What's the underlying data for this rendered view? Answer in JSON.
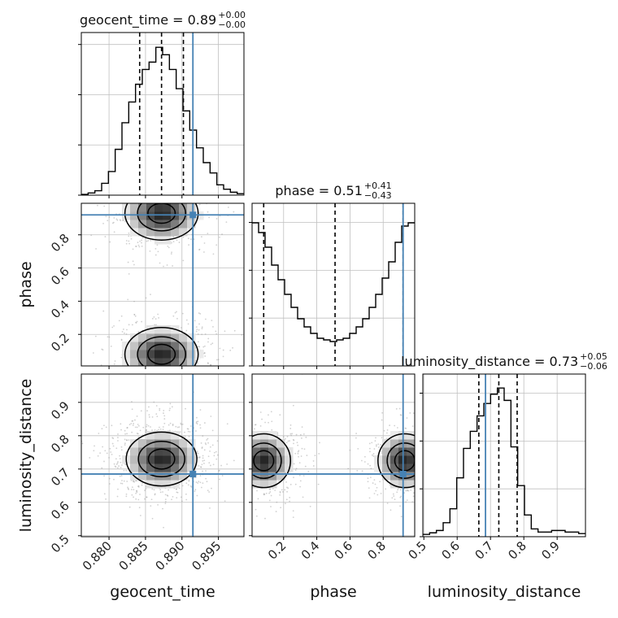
{
  "chart_data": {
    "type": "corner",
    "parameters": [
      "geocent_time",
      "phase",
      "luminosity_distance"
    ],
    "truths": {
      "geocent_time": 0.8915,
      "phase": 0.92,
      "luminosity_distance": 0.685
    },
    "colors": {
      "truth": "#4682b4",
      "hist": "#000000",
      "grid": "#c0c0c0",
      "scatter": "#9a9a9a"
    },
    "grid": true,
    "titles": {
      "geocent_time": {
        "label": "geocent_time = 0.89",
        "plus": "+0.00",
        "minus": "−0.00"
      },
      "phase": {
        "label": "phase = 0.51",
        "plus": "+0.41",
        "minus": "−0.43"
      },
      "luminosity_distance": {
        "label": "luminosity_distance = 0.73",
        "plus": "+0.05",
        "minus": "−0.06"
      }
    },
    "ranges": {
      "geocent_time": [
        0.8762,
        0.8985
      ],
      "phase": [
        0.01,
        0.99
      ],
      "luminosity_distance": [
        0.497,
        0.985
      ]
    },
    "ticks": {
      "geocent_time": [
        0.88,
        0.885,
        0.89,
        0.895
      ],
      "phase": [
        0.2,
        0.4,
        0.6,
        0.8
      ],
      "luminosity_distance": [
        0.5,
        0.6,
        0.7,
        0.8,
        0.9
      ]
    },
    "tick_labels": {
      "geocent_time": [
        "0.880",
        "0.885",
        "0.890",
        "0.895"
      ],
      "phase": [
        "0.2",
        "0.4",
        "0.6",
        "0.8"
      ],
      "luminosity_distance": [
        "0.5",
        "0.6",
        "0.7",
        "0.8",
        "0.9"
      ]
    },
    "axis_labels": {
      "geocent_time": "geocent_time",
      "phase": "phase",
      "luminosity_distance": "luminosity_distance"
    },
    "quantiles": {
      "geocent_time": [
        0.8842,
        0.8872,
        0.8902
      ],
      "phase": [
        0.08,
        0.51,
        0.92
      ],
      "luminosity_distance": [
        0.665,
        0.725,
        0.78
      ]
    },
    "histograms": {
      "geocent_time": {
        "edges_start": 0.8762,
        "edges_end": 0.8985,
        "counts": [
          0.005,
          0.015,
          0.03,
          0.08,
          0.16,
          0.31,
          0.49,
          0.63,
          0.75,
          0.85,
          0.9,
          1.0,
          0.95,
          0.85,
          0.72,
          0.57,
          0.44,
          0.32,
          0.22,
          0.15,
          0.07,
          0.04,
          0.02,
          0.01
        ]
      },
      "phase": {
        "edges_start": 0.01,
        "edges_end": 0.99,
        "counts": [
          0.88,
          0.82,
          0.73,
          0.62,
          0.53,
          0.44,
          0.36,
          0.29,
          0.24,
          0.2,
          0.17,
          0.16,
          0.15,
          0.16,
          0.17,
          0.2,
          0.24,
          0.29,
          0.36,
          0.44,
          0.54,
          0.64,
          0.76,
          0.86,
          0.88
        ]
      },
      "luminosity_distance": {
        "edges_start": 0.497,
        "edges_end": 0.985,
        "counts": [
          0.015,
          0.025,
          0.04,
          0.09,
          0.18,
          0.38,
          0.57,
          0.68,
          0.78,
          0.86,
          0.92,
          0.96,
          0.88,
          0.58,
          0.33,
          0.14,
          0.05,
          0.03,
          0.03,
          0.04,
          0.04,
          0.03,
          0.03,
          0.02
        ]
      }
    },
    "ylim_hist": {
      "geocent_time": [
        0,
        1.1
      ],
      "phase": [
        0,
        1.0
      ],
      "luminosity_distance": [
        0,
        1.05
      ]
    },
    "density_pairs": [
      {
        "x": "geocent_time",
        "y": "phase",
        "blobs": [
          {
            "cx": 0.8872,
            "cy": 0.93,
            "sx": 0.0028,
            "sy": 0.09
          },
          {
            "cx": 0.8872,
            "cy": 0.08,
            "sx": 0.0028,
            "sy": 0.09
          }
        ]
      },
      {
        "x": "geocent_time",
        "y": "luminosity_distance",
        "blobs": [
          {
            "cx": 0.8872,
            "cy": 0.73,
            "sx": 0.0027,
            "sy": 0.045
          }
        ]
      },
      {
        "x": "phase",
        "y": "luminosity_distance",
        "blobs": [
          {
            "cx": 0.93,
            "cy": 0.725,
            "sx": 0.09,
            "sy": 0.045
          },
          {
            "cx": 0.08,
            "cy": 0.725,
            "sx": 0.09,
            "sy": 0.045
          }
        ]
      }
    ]
  }
}
